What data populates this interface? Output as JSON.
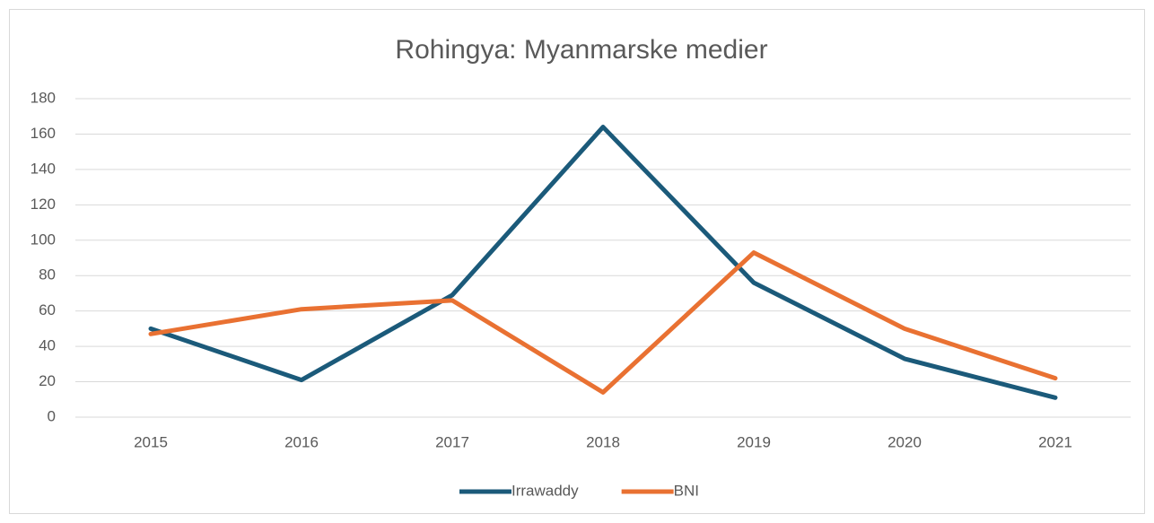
{
  "chart_data": {
    "type": "line",
    "title": "Rohingya: Myanmarske medier",
    "categories": [
      "2015",
      "2016",
      "2017",
      "2018",
      "2019",
      "2020",
      "2021"
    ],
    "series": [
      {
        "name": "Irrawaddy",
        "color": "#1b5a7a",
        "values": [
          50,
          21,
          69,
          164,
          76,
          33,
          11
        ]
      },
      {
        "name": "BNI",
        "color": "#e97132",
        "values": [
          47,
          61,
          66,
          14,
          93,
          50,
          22
        ]
      }
    ],
    "ylim": [
      0,
      180
    ],
    "yticks": [
      0,
      20,
      40,
      60,
      80,
      100,
      120,
      140,
      160,
      180
    ],
    "grid": true,
    "legend": "bottom"
  }
}
